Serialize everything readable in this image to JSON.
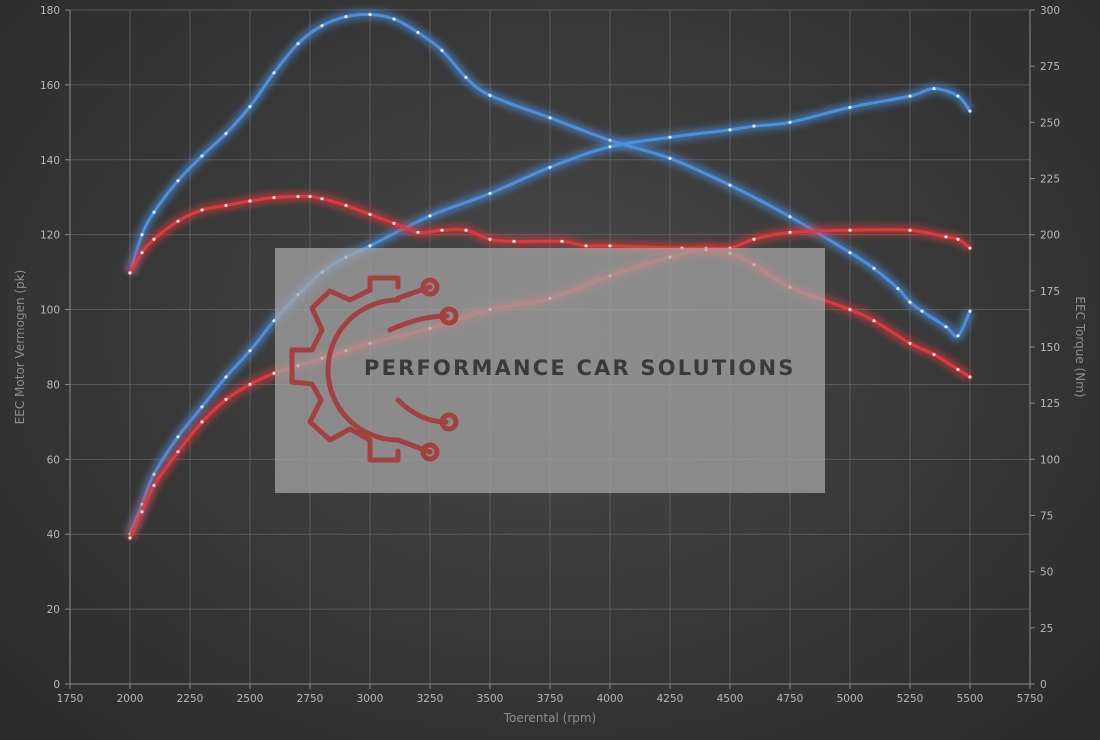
{
  "chart_data": {
    "type": "line",
    "xlabel": "Toerental (rpm)",
    "ylabel": "EEC Motor Vermogen (pk)",
    "y2label": "EEC Torque (Nm)",
    "xlim": [
      1750,
      5750
    ],
    "xticks": [
      1750,
      2000,
      2250,
      2500,
      2750,
      3000,
      3250,
      3500,
      3750,
      4000,
      4250,
      4500,
      4750,
      5000,
      5250,
      5500,
      5750
    ],
    "ylim": [
      0,
      180
    ],
    "yticks": [
      0,
      20,
      40,
      60,
      80,
      100,
      120,
      140,
      160,
      180
    ],
    "y2lim": [
      0,
      300
    ],
    "y2ticks": [
      0,
      25,
      50,
      75,
      100,
      125,
      150,
      175,
      200,
      225,
      250,
      275,
      300
    ],
    "grid": true,
    "series": [
      {
        "color": "#4a8fe0",
        "axis": "right",
        "x": [
          2000,
          2050,
          2100,
          2200,
          2300,
          2400,
          2500,
          2600,
          2700,
          2800,
          2900,
          3000,
          3100,
          3200,
          3300,
          3400,
          3500,
          3750,
          4000,
          4250,
          4500,
          4750,
          5000,
          5100,
          5200,
          5250,
          5300,
          5400,
          5450,
          5500
        ],
        "y": [
          183,
          200,
          210,
          224,
          235,
          245,
          257,
          272,
          285,
          293,
          297,
          298,
          296,
          290,
          282,
          270,
          262,
          252,
          242,
          234,
          222,
          208,
          192,
          185,
          176,
          170,
          166,
          159,
          155,
          166
        ]
      },
      {
        "color": "#4a8fe0",
        "axis": "left",
        "x": [
          2000,
          2050,
          2100,
          2200,
          2300,
          2400,
          2500,
          2600,
          2700,
          2800,
          2900,
          3000,
          3250,
          3500,
          3750,
          4000,
          4250,
          4500,
          4600,
          4750,
          5000,
          5250,
          5350,
          5450,
          5500
        ],
        "y": [
          40,
          48,
          56,
          66,
          74,
          82,
          89,
          97,
          104,
          110,
          114,
          117,
          125,
          131,
          138,
          143.5,
          146,
          148,
          149,
          150,
          154,
          157,
          159,
          157,
          153
        ]
      },
      {
        "color": "#e0383c",
        "axis": "right",
        "x": [
          2000,
          2050,
          2100,
          2200,
          2300,
          2400,
          2500,
          2600,
          2700,
          2750,
          2800,
          2900,
          3000,
          3100,
          3200,
          3300,
          3400,
          3500,
          3600,
          3800,
          3900,
          4000,
          4300,
          4400,
          4500,
          4600,
          4750,
          5000,
          5250,
          5400,
          5450,
          5500
        ],
        "y": [
          183,
          192,
          198,
          206,
          211,
          213,
          215,
          216.5,
          217,
          217,
          216,
          213,
          209,
          205,
          201,
          202,
          202,
          198,
          197,
          197,
          195,
          195,
          194,
          194,
          194,
          198,
          201,
          202,
          202,
          199,
          198,
          194
        ]
      },
      {
        "color": "#e0383c",
        "axis": "left",
        "x": [
          2000,
          2050,
          2100,
          2200,
          2300,
          2400,
          2500,
          2600,
          2700,
          2800,
          2900,
          3000,
          3250,
          3500,
          3750,
          4000,
          4250,
          4400,
          4500,
          4600,
          4750,
          5000,
          5100,
          5250,
          5350,
          5450,
          5500
        ],
        "y": [
          39,
          46,
          53,
          62,
          70,
          76,
          80,
          83,
          85,
          87,
          89,
          91,
          95,
          100,
          103,
          109,
          114,
          116,
          115,
          112,
          106,
          100,
          97,
          91,
          88,
          84,
          82
        ]
      }
    ]
  },
  "watermark": {
    "text": "PERFORMANCE CAR SOLUTIONS",
    "logo_icon": "gear-circuit-logo-icon",
    "logo_color": "#a63a3a"
  }
}
